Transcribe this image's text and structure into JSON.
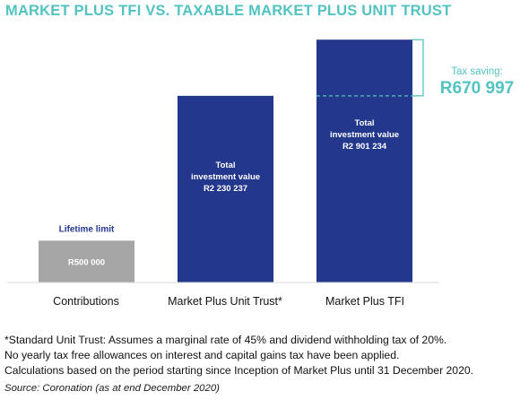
{
  "colors": {
    "title": "#52c3c0",
    "contributions_bar": "#a6a6a6",
    "fund_bar": "#23378d",
    "label_dark": "#23378d",
    "bar_text": "#ffffff",
    "axis": "#d9d9d9",
    "accent": "#52c3c0"
  },
  "title": "MARKET PLUS TFI VS. TAXABLE MARKET PLUS UNIT TRUST",
  "chart_data": {
    "type": "bar",
    "categories": [
      "Contributions",
      "Market Plus Unit Trust*",
      "Market Plus TFI"
    ],
    "values": [
      500000,
      2230237,
      2901234
    ],
    "bar_labels": [
      [
        "R500 000"
      ],
      [
        "Total",
        "investment value",
        "R2 230 237"
      ],
      [
        "Total",
        "investment value",
        "R2 901 234"
      ]
    ],
    "annotations": {
      "limit_label": "Lifetime limit",
      "tax_saving_label": "Tax saving:",
      "tax_saving_value": "R670 997",
      "tax_saving_amount": 670997
    },
    "ylim": [
      0,
      3000000
    ],
    "grid": false,
    "legend": "none",
    "title": "MARKET PLUS TFI VS. TAXABLE MARKET PLUS UNIT TRUST"
  },
  "footnotes": [
    "*Standard Unit Trust: Assumes a marginal rate of 45% and dividend withholding tax of 20%.",
    "No yearly tax free allowances on interest and capital gains tax have been applied.",
    "Calculations based on the period starting since Inception of Market Plus until 31 December 2020."
  ],
  "source": "Source: Coronation (as at end December 2020)"
}
